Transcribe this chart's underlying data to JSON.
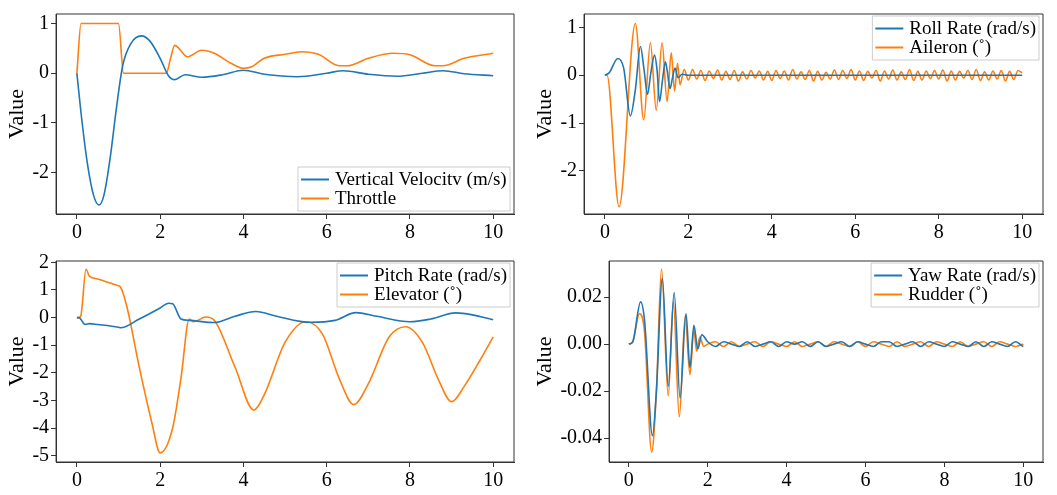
{
  "chart_data": [
    {
      "type": "line",
      "ylabel": "Value",
      "xlim": [
        -0.5,
        10.5
      ],
      "xticks": [
        0,
        2,
        4,
        6,
        8,
        10
      ],
      "ylim": [
        -2.83,
        1.19
      ],
      "yticks": [
        -2,
        -1,
        0,
        1
      ],
      "legend": "bottom right",
      "grid": false,
      "marker": "none",
      "series": [
        {
          "name": "Vertical Velocitv (m/s)",
          "color": "#1f77b4",
          "x": [
            0,
            0.1,
            0.25,
            0.4,
            0.53,
            0.65,
            0.8,
            0.95,
            1.1,
            1.3,
            1.55,
            1.75,
            2.0,
            2.2,
            2.35,
            2.6,
            3.0,
            3.5,
            4.0,
            4.5,
            5.3,
            6.0,
            6.4,
            7.0,
            7.7,
            8.3,
            8.8,
            9.3,
            10
          ],
          "values": [
            0,
            -0.8,
            -1.8,
            -2.45,
            -2.65,
            -2.45,
            -1.7,
            -0.7,
            0.15,
            0.6,
            0.75,
            0.65,
            0.3,
            -0.05,
            -0.13,
            -0.03,
            -0.08,
            -0.03,
            0.06,
            -0.02,
            -0.07,
            0.0,
            0.05,
            -0.02,
            -0.06,
            0.0,
            0.05,
            -0.01,
            -0.05
          ]
        },
        {
          "name": "Throttle",
          "color": "#ff7f0e",
          "x": [
            0,
            0.1,
            1.0,
            1.12,
            2.15,
            2.25,
            2.35,
            2.45,
            2.65,
            3.0,
            3.3,
            3.7,
            4.0,
            4.2,
            4.5,
            5.0,
            5.4,
            5.8,
            6.3,
            6.5,
            7.0,
            7.6,
            8.0,
            8.6,
            8.8,
            9.3,
            10
          ],
          "values": [
            0,
            1,
            1,
            0,
            0,
            0.3,
            0.56,
            0.5,
            0.33,
            0.46,
            0.4,
            0.2,
            0.1,
            0.13,
            0.3,
            0.38,
            0.43,
            0.38,
            0.15,
            0.15,
            0.3,
            0.4,
            0.37,
            0.15,
            0.15,
            0.3,
            0.4
          ]
        }
      ]
    },
    {
      "type": "line",
      "ylabel": "Value",
      "xlim": [
        -0.5,
        10.5
      ],
      "xticks": [
        0,
        2,
        4,
        6,
        8,
        10
      ],
      "ylim": [
        -2.9,
        1.28
      ],
      "yticks": [
        -2,
        -1,
        0,
        1
      ],
      "legend": "top right",
      "grid": false,
      "marker": "none",
      "series": [
        {
          "name": "Roll Rate (rad/s)",
          "color": "#1f77b4",
          "x": [
            0,
            0.1,
            0.31,
            0.45,
            0.61,
            0.73,
            0.85,
            0.94,
            1.02,
            1.1,
            1.19,
            1.25,
            1.31,
            1.38,
            1.45,
            1.5,
            1.56,
            1.62,
            1.68,
            1.75,
            1.85,
            2.0,
            10
          ],
          "values": [
            0,
            0.05,
            0.35,
            0.15,
            -0.85,
            -0.3,
            0.6,
            0.1,
            -0.4,
            0.05,
            0.42,
            0.1,
            -0.55,
            -0.1,
            0.28,
            0.05,
            -0.28,
            -0.05,
            0.15,
            -0.05,
            0.02,
            0,
            0
          ]
        },
        {
          "name": "Aileron (˚)",
          "color": "#ff7f0e",
          "x": [
            0,
            0.05,
            0.34,
            0.73,
            0.93,
            1.09,
            1.23,
            1.37,
            1.49,
            1.59,
            1.67,
            1.74,
            1.8,
            1.9,
            2.0,
            2.1,
            2.2,
            2.3,
            2.4,
            2.5,
            2.6,
            2.7,
            2.8,
            2.9,
            3.0,
            3.1,
            3.2,
            3.3,
            3.4,
            3.5,
            3.6,
            3.7,
            3.8,
            3.9,
            4.0,
            4.1,
            4.2,
            4.3,
            4.4,
            4.5,
            4.6,
            4.7,
            4.8,
            4.9,
            5.0,
            5.1,
            5.2,
            5.3,
            5.4,
            5.5,
            5.6,
            5.7,
            5.8,
            5.9,
            6.0,
            6.1,
            6.2,
            6.3,
            6.4,
            6.5,
            6.6,
            6.7,
            6.8,
            6.9,
            7.0,
            7.1,
            7.2,
            7.3,
            7.4,
            7.5,
            7.6,
            7.7,
            7.8,
            7.9,
            8.0,
            8.1,
            8.2,
            8.3,
            8.4,
            8.5,
            8.6,
            8.7,
            8.8,
            8.9,
            9.0,
            9.1,
            9.2,
            9.3,
            9.4,
            9.5,
            9.6,
            9.7,
            9.8,
            9.9,
            10.0
          ],
          "values": [
            0,
            0,
            -2.75,
            1.08,
            -0.93,
            0.68,
            -0.73,
            0.68,
            -0.55,
            0.47,
            -0.33,
            0.25,
            -0.2,
            0.12,
            -0.1,
            0.12,
            -0.08,
            0.1,
            -0.11,
            0.09,
            -0.07,
            0.11,
            -0.1,
            0.08,
            -0.09,
            0.1,
            -0.12,
            0.07,
            -0.08,
            0.1,
            -0.06,
            0.09,
            -0.1,
            0.08,
            -0.11,
            0.1,
            -0.07,
            0.09,
            -0.1,
            0.12,
            -0.08,
            0.07,
            -0.09,
            0.1,
            -0.12,
            0.08,
            -0.1,
            0.06,
            -0.08,
            0.11,
            -0.09,
            0.1,
            -0.07,
            0.12,
            -0.1,
            0.09,
            -0.11,
            0.08,
            -0.06,
            0.1,
            -0.12,
            0.09,
            -0.08,
            0.11,
            -0.1,
            0.07,
            -0.09,
            0.12,
            -0.11,
            0.08,
            -0.1,
            0.09,
            -0.07,
            0.1,
            -0.08,
            0.11,
            -0.12,
            0.09,
            -0.1,
            0.08,
            -0.06,
            0.1,
            -0.09,
            0.12,
            -0.11,
            0.07,
            -0.1,
            0.09,
            -0.08,
            0.1,
            -0.12,
            0.08,
            -0.09,
            0.1,
            0.05
          ]
        }
      ]
    },
    {
      "type": "line",
      "ylabel": "Value",
      "xlim": [
        -0.5,
        10.5
      ],
      "xticks": [
        0,
        2,
        4,
        6,
        8,
        10
      ],
      "ylim": [
        -5.23,
        2.05
      ],
      "yticks": [
        -5,
        -4,
        -3,
        -2,
        -1,
        0,
        1,
        2
      ],
      "legend": "top right",
      "grid": false,
      "marker": "none",
      "series": [
        {
          "name": "Pitch Rate (rad/s)",
          "color": "#1f77b4",
          "x": [
            0,
            0.05,
            0.2,
            0.3,
            0.5,
            1.0,
            1.05,
            1.5,
            2.0,
            2.2,
            2.3,
            2.5,
            2.7,
            3.3,
            3.8,
            4.3,
            4.8,
            5.6,
            6.2,
            6.7,
            7.2,
            8.0,
            8.5,
            9.1,
            9.5,
            10
          ],
          "values": [
            0,
            0,
            -0.25,
            -0.22,
            -0.25,
            -0.35,
            -0.37,
            -0.05,
            0.35,
            0.52,
            0.5,
            -0.05,
            -0.1,
            -0.18,
            0.05,
            0.22,
            0.05,
            -0.17,
            -0.1,
            0.18,
            0.05,
            -0.15,
            -0.05,
            0.17,
            0.1,
            -0.08
          ]
        },
        {
          "name": "Elevator (˚)",
          "color": "#ff7f0e",
          "x": [
            0,
            0.05,
            0.1,
            0.22,
            0.3,
            0.5,
            0.8,
            1.0,
            1.05,
            1.2,
            1.5,
            1.8,
            2.0,
            2.3,
            2.5,
            2.7,
            2.8,
            3.1,
            3.3,
            3.8,
            4.25,
            4.5,
            5.0,
            5.5,
            5.9,
            6.3,
            6.65,
            7.0,
            7.5,
            7.9,
            8.3,
            8.7,
            9.0,
            9.3,
            9.7,
            10
          ],
          "values": [
            0,
            0,
            0.1,
            1.75,
            1.5,
            1.4,
            1.25,
            1.15,
            1.1,
            0.4,
            -1.8,
            -3.8,
            -4.9,
            -4.0,
            -2.2,
            -0.05,
            -0.15,
            0.02,
            -0.1,
            -1.8,
            -3.35,
            -2.8,
            -0.9,
            -0.15,
            -0.6,
            -2.2,
            -3.15,
            -2.4,
            -0.7,
            -0.33,
            -0.9,
            -2.3,
            -3.05,
            -2.5,
            -1.5,
            -0.7
          ]
        }
      ]
    },
    {
      "type": "line",
      "ylabel": "Value",
      "xlim": [
        -0.5,
        10.5
      ],
      "xticks": [
        0,
        2,
        4,
        6,
        8,
        10
      ],
      "ylim": [
        -0.0502,
        0.0354
      ],
      "yticks": [
        {
          "value": -0.04,
          "label": "-0.04"
        },
        {
          "value": -0.02,
          "label": "-0.02"
        },
        {
          "value": 0,
          "label": "0.00"
        },
        {
          "value": 0.02,
          "label": "0.02"
        }
      ],
      "legend": "top right",
      "grid": false,
      "marker": "none",
      "series": [
        {
          "name": "Yaw Rate (rad/s)",
          "color": "#1f77b4",
          "x": [
            0,
            0.1,
            0.3,
            0.4,
            0.6,
            0.7,
            0.85,
            1.0,
            1.15,
            1.3,
            1.45,
            1.55,
            1.65,
            1.75,
            1.85,
            2.0,
            2.2,
            2.4,
            2.6,
            2.8,
            3.0,
            3.2,
            3.4,
            3.6,
            3.8,
            4.0,
            4.2,
            4.4,
            4.6,
            4.8,
            5.0,
            5.2,
            5.4,
            5.6,
            5.8,
            6.0,
            6.2,
            6.4,
            6.6,
            6.8,
            7.0,
            7.2,
            7.4,
            7.6,
            7.8,
            8.0,
            8.2,
            8.4,
            8.6,
            8.8,
            9.0,
            9.2,
            9.4,
            9.6,
            9.8,
            10.0
          ],
          "values": [
            0,
            0.001,
            0.018,
            0.01,
            -0.039,
            -0.02,
            0.028,
            -0.018,
            0.022,
            -0.023,
            0.013,
            -0.01,
            0.008,
            -0.002,
            0.004,
            0.001,
            -0.001,
            0.001,
            0,
            -0.001,
            0.001,
            -0.001,
            0,
            0.001,
            -0.001,
            0.001,
            0,
            0.001,
            -0.001,
            0.001,
            -0.001,
            0,
            0.001,
            -0.001,
            0.001,
            0,
            -0.001,
            0.001,
            0.001,
            -0.001,
            0,
            0.001,
            -0.001,
            0.001,
            0,
            -0.001,
            0.001,
            0,
            -0.001,
            0.001,
            -0.001,
            0.001,
            0,
            -0.001,
            0.001,
            -0.001
          ]
        },
        {
          "name": "Rudder (˚)",
          "color": "#ff7f0e",
          "x": [
            0,
            0.1,
            0.27,
            0.4,
            0.58,
            0.7,
            0.83,
            1.0,
            1.13,
            1.28,
            1.43,
            1.55,
            1.65,
            1.72,
            1.8,
            1.9,
            2.0,
            2.2,
            2.4,
            2.6,
            2.8,
            3.0,
            3.2,
            3.4,
            3.6,
            3.8,
            4.0,
            4.2,
            4.4,
            4.6,
            4.8,
            5.0,
            5.2,
            5.4,
            5.6,
            5.8,
            6.0,
            6.2,
            6.4,
            6.6,
            6.8,
            7.0,
            7.2,
            7.4,
            7.6,
            7.8,
            8.0,
            8.2,
            8.4,
            8.6,
            8.8,
            9.0,
            9.2,
            9.4,
            9.6,
            9.8,
            10.0
          ],
          "values": [
            0,
            0.001,
            0.013,
            0.005,
            -0.046,
            -0.02,
            0.032,
            -0.022,
            0.018,
            -0.031,
            0.012,
            -0.013,
            0.006,
            -0.003,
            0.003,
            -0.001,
            0,
            0.001,
            -0.001,
            0.001,
            -0.001,
            0,
            0.001,
            -0.001,
            0.001,
            0,
            -0.001,
            0.001,
            -0.001,
            0,
            0.001,
            -0.001,
            0.001,
            0,
            -0.001,
            0.001,
            -0.001,
            0.001,
            0,
            -0.001,
            0.001,
            -0.001,
            0,
            0.001,
            -0.001,
            0.001,
            0,
            -0.001,
            0.001,
            -0.001,
            0,
            0.001,
            -0.001,
            0.001,
            0,
            -0.001,
            0
          ]
        }
      ]
    }
  ]
}
